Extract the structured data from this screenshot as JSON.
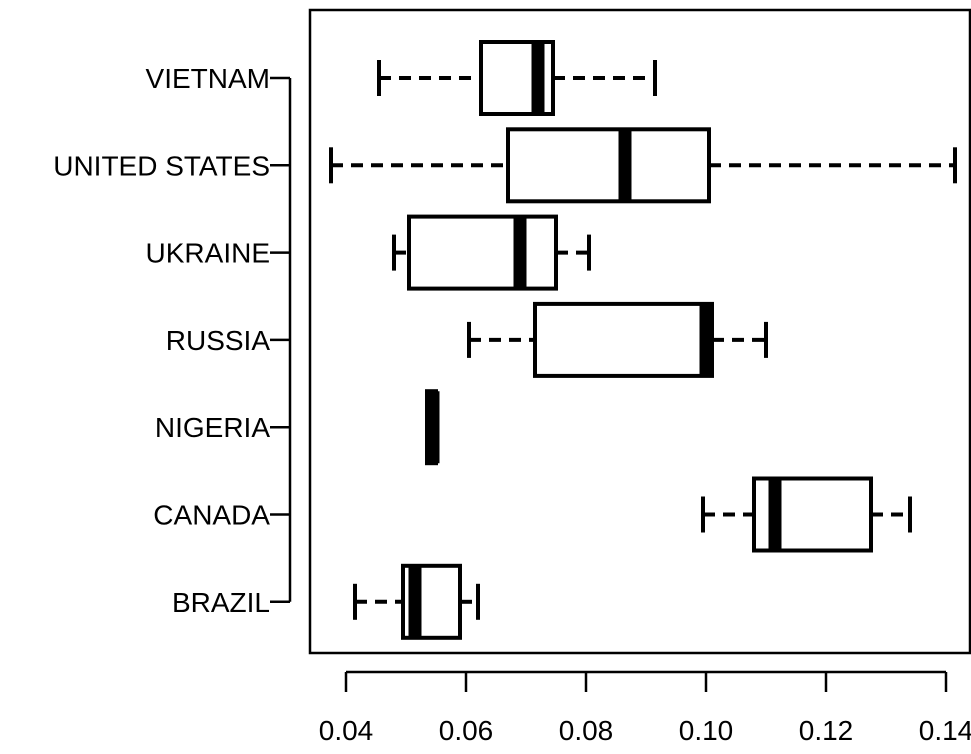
{
  "chart_data": {
    "type": "boxplot",
    "orientation": "horizontal",
    "title": "",
    "xlabel": "",
    "ylabel": "",
    "xlim": [
      0.034,
      0.144
    ],
    "x_ticks": [
      0.04,
      0.06,
      0.08,
      0.1,
      0.12,
      0.14
    ],
    "x_tick_labels": [
      "0.04",
      "0.06",
      "0.08",
      "0.10",
      "0.12",
      "0.14"
    ],
    "grid": false,
    "series": [
      {
        "name": "BRAZIL",
        "whisker_low": 0.0415,
        "q1": 0.0495,
        "median": 0.0515,
        "q3": 0.059,
        "whisker_high": 0.062
      },
      {
        "name": "CANADA",
        "whisker_low": 0.0995,
        "q1": 0.108,
        "median": 0.1115,
        "q3": 0.1275,
        "whisker_high": 0.134
      },
      {
        "name": "NIGERIA",
        "whisker_low": 0.0535,
        "q1": 0.0535,
        "median": 0.0545,
        "q3": 0.055,
        "whisker_high": 0.055
      },
      {
        "name": "RUSSIA",
        "whisker_low": 0.0605,
        "q1": 0.0715,
        "median": 0.1,
        "q3": 0.101,
        "whisker_high": 0.11
      },
      {
        "name": "UKRAINE",
        "whisker_low": 0.048,
        "q1": 0.0505,
        "median": 0.069,
        "q3": 0.075,
        "whisker_high": 0.0805
      },
      {
        "name": "UNITED STATES",
        "whisker_low": 0.0375,
        "q1": 0.067,
        "median": 0.0865,
        "q3": 0.1005,
        "whisker_high": 0.1415
      },
      {
        "name": "VIETNAM",
        "whisker_low": 0.0455,
        "q1": 0.0625,
        "median": 0.072,
        "q3": 0.0745,
        "whisker_high": 0.0915
      }
    ]
  }
}
